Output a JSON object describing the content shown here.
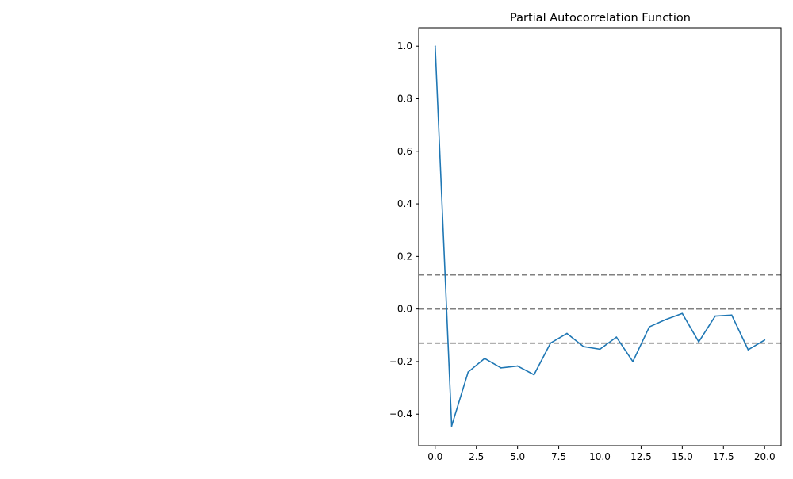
{
  "chart_data": {
    "type": "line",
    "title": "Partial Autocorrelation Function",
    "xlabel": "",
    "ylabel": "",
    "xlim": [
      -1,
      21
    ],
    "ylim": [
      -0.52,
      1.07
    ],
    "xticks": [
      0.0,
      2.5,
      5.0,
      7.5,
      10.0,
      12.5,
      15.0,
      17.5,
      20.0
    ],
    "xtick_labels": [
      "0.0",
      "2.5",
      "5.0",
      "7.5",
      "10.0",
      "12.5",
      "15.0",
      "17.5",
      "20.0"
    ],
    "yticks": [
      -0.4,
      -0.2,
      0.0,
      0.2,
      0.4,
      0.6,
      0.8,
      1.0
    ],
    "ytick_labels": [
      "−0.4",
      "−0.2",
      "0.0",
      "0.2",
      "0.4",
      "0.6",
      "0.8",
      "1.0"
    ],
    "grid": false,
    "series": [
      {
        "color": "#1f77b4",
        "x": [
          0,
          1,
          2,
          3,
          4,
          5,
          6,
          7,
          8,
          9,
          10,
          11,
          12,
          13,
          14,
          15,
          16,
          17,
          18,
          19,
          20
        ],
        "values": [
          1.0,
          -0.445,
          -0.24,
          -0.188,
          -0.224,
          -0.217,
          -0.25,
          -0.13,
          -0.093,
          -0.143,
          -0.153,
          -0.107,
          -0.2,
          -0.068,
          -0.04,
          -0.017,
          -0.125,
          -0.027,
          -0.023,
          -0.155,
          -0.118
        ]
      }
    ],
    "reference_lines": [
      {
        "y": 0.13,
        "style": "dashed",
        "color": "#808080"
      },
      {
        "y": 0.0,
        "style": "dashed",
        "color": "#808080"
      },
      {
        "y": -0.13,
        "style": "dashed",
        "color": "#808080"
      }
    ]
  }
}
